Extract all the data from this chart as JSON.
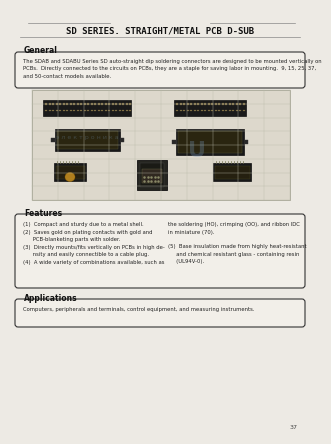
{
  "title": "SD SERIES. STRAIGHT/METAL PCB D-SUB",
  "bg_color": "#edeae4",
  "page_number": "37",
  "general_heading": "General",
  "general_text": "The SDAB and SDABU Series SD auto-straight dip soldering connectors are designed to be mounted vertically on\nPCBs.  Directly connected to the circuits on PCBs, they are a staple for saving labor in mounting.  9, 15, 25, 37,\nand 50-contact models available.",
  "features_heading": "Features",
  "features_left_1": "(1)  Compact and sturdy due to a metal shell.",
  "features_left_2": "(2)  Saves gold on plating contacts with gold and\n      PCB-blanketing parts with solder.",
  "features_left_3": "(3)  Directly mounts/fits vertically on PCBs in high de-\n      nsity and easily connectible to a cable plug.",
  "features_left_4": "(4)  A wide variety of combinations available, such as",
  "features_right_top": "the soldering (HO), crimping (OO), and ribbon IDC\nin miniature (70).",
  "features_right_bottom": "(5)  Base insulation made from highly heat-resistant\n     and chemical resistant glass - containing resin\n     (UL94V-0).",
  "applications_heading": "Applications",
  "applications_text": "Computers, peripherals and terminals, control equipment, and measuring instruments.",
  "title_fontsize": 6.5,
  "section_fontsize": 5.5,
  "body_fontsize": 3.8,
  "line_color": "#888888",
  "box_edge_color": "#333333",
  "box_face_color": "#f2efe9",
  "text_color": "#222222",
  "grid_color": "#bbbbaa",
  "img_bg_color": "#ddd8cc",
  "watermark_color": "#7799bb",
  "watermark_alpha": 0.3
}
